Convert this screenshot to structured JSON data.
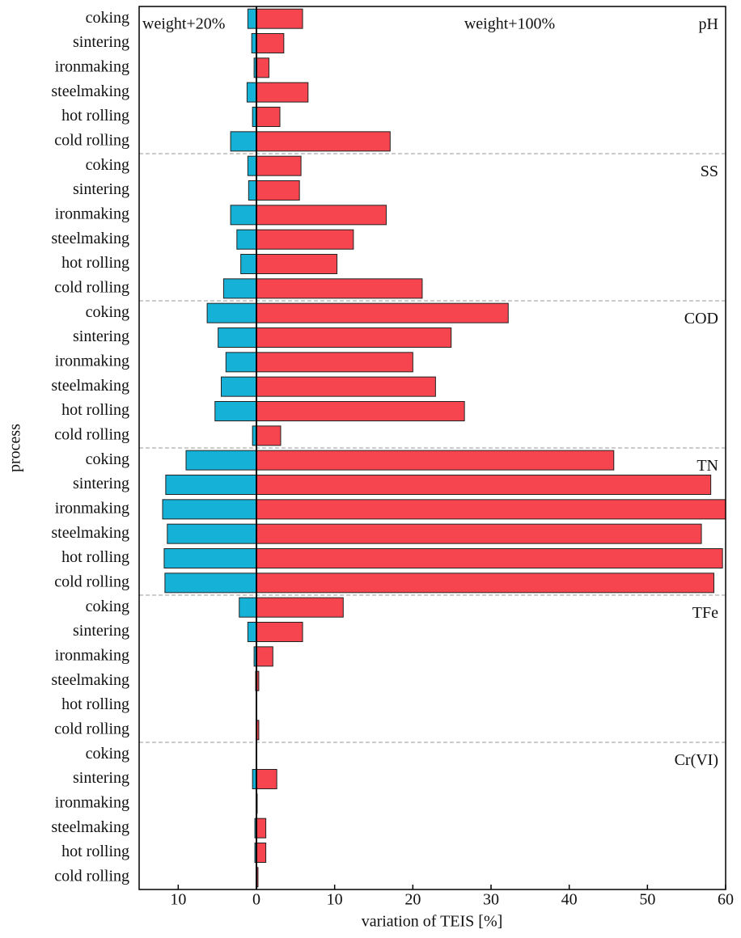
{
  "chart_data": {
    "type": "diverging-bar",
    "x_label": "variation of TEIS [%]",
    "y_label": "process",
    "groups": [
      "pH",
      "SS",
      "COD",
      "TN",
      "TFe",
      "Cr(VI)"
    ],
    "categories": [
      "coking",
      "sintering",
      "ironmaking",
      "steelmaking",
      "hot rolling",
      "cold rolling",
      "coking",
      "sintering",
      "ironmaking",
      "steelmaking",
      "hot rolling",
      "cold rolling",
      "coking",
      "sintering",
      "ironmaking",
      "steelmaking",
      "hot rolling",
      "cold rolling",
      "coking",
      "sintering",
      "ironmaking",
      "steelmaking",
      "hot rolling",
      "cold rolling",
      "coking",
      "sintering",
      "ironmaking",
      "steelmaking",
      "hot rolling",
      "cold rolling",
      "coking",
      "sintering",
      "ironmaking",
      "steelmaking",
      "hot rolling",
      "cold rolling"
    ],
    "series": [
      {
        "name": "weight+20%",
        "color": "#16b1d6",
        "values": [
          -1.1,
          -0.6,
          -0.3,
          -1.2,
          -0.5,
          -3.3,
          -1.1,
          -1.0,
          -3.3,
          -2.5,
          -2.0,
          -4.2,
          -6.3,
          -4.9,
          -3.9,
          -4.5,
          -5.3,
          -0.5,
          -9.0,
          -11.6,
          -12.0,
          -11.4,
          -11.8,
          -11.7,
          -2.2,
          -1.1,
          -0.3,
          -0.1,
          0,
          0,
          0,
          -0.5,
          0,
          -0.2,
          -0.2,
          0
        ]
      },
      {
        "name": "weight+100%",
        "color": "#f6454f",
        "values": [
          5.9,
          3.5,
          1.6,
          6.6,
          3.0,
          17.1,
          5.7,
          5.5,
          16.6,
          12.4,
          10.3,
          21.2,
          32.2,
          24.9,
          20.0,
          22.9,
          26.6,
          3.1,
          45.7,
          58.1,
          60,
          56.9,
          59.6,
          58.5,
          11.1,
          5.9,
          2.1,
          0.3,
          0,
          0.3,
          0,
          2.6,
          0.1,
          1.2,
          1.2,
          0.2
        ]
      }
    ],
    "xlim": [
      -15,
      60
    ],
    "xticks": [
      {
        "value": -10,
        "label": "10"
      },
      0,
      10,
      20,
      30,
      40,
      50,
      60
    ],
    "group_separators": true
  }
}
